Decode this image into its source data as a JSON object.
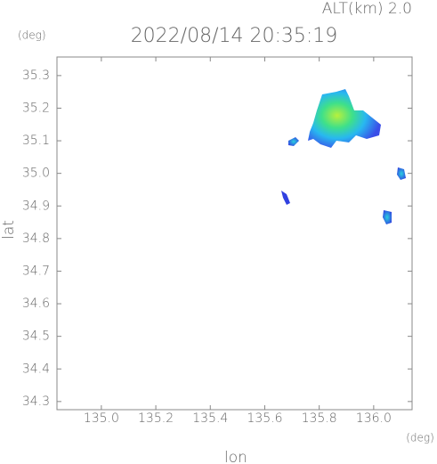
{
  "chart_data": {
    "type": "map",
    "title": "2022/08/14 20:35:19",
    "subtitle": "ALT(km) 2.0",
    "x_label": "lon",
    "y_label": "lat",
    "x_unit": "(deg)",
    "y_unit": "(deg)",
    "xlim": [
      134.837,
      136.141
    ],
    "ylim": [
      34.275,
      35.357
    ],
    "xticks": [
      {
        "value": 135.0,
        "label": "135.0"
      },
      135.2,
      135.4,
      135.6,
      135.8,
      {
        "value": 136.0,
        "label": "136.0"
      }
    ],
    "yticks": [
      34.3,
      34.4,
      34.5,
      34.6,
      34.7,
      34.8,
      34.9,
      {
        "value": 35.0,
        "label": "35.0"
      },
      35.1,
      35.2,
      35.3
    ]
  }
}
